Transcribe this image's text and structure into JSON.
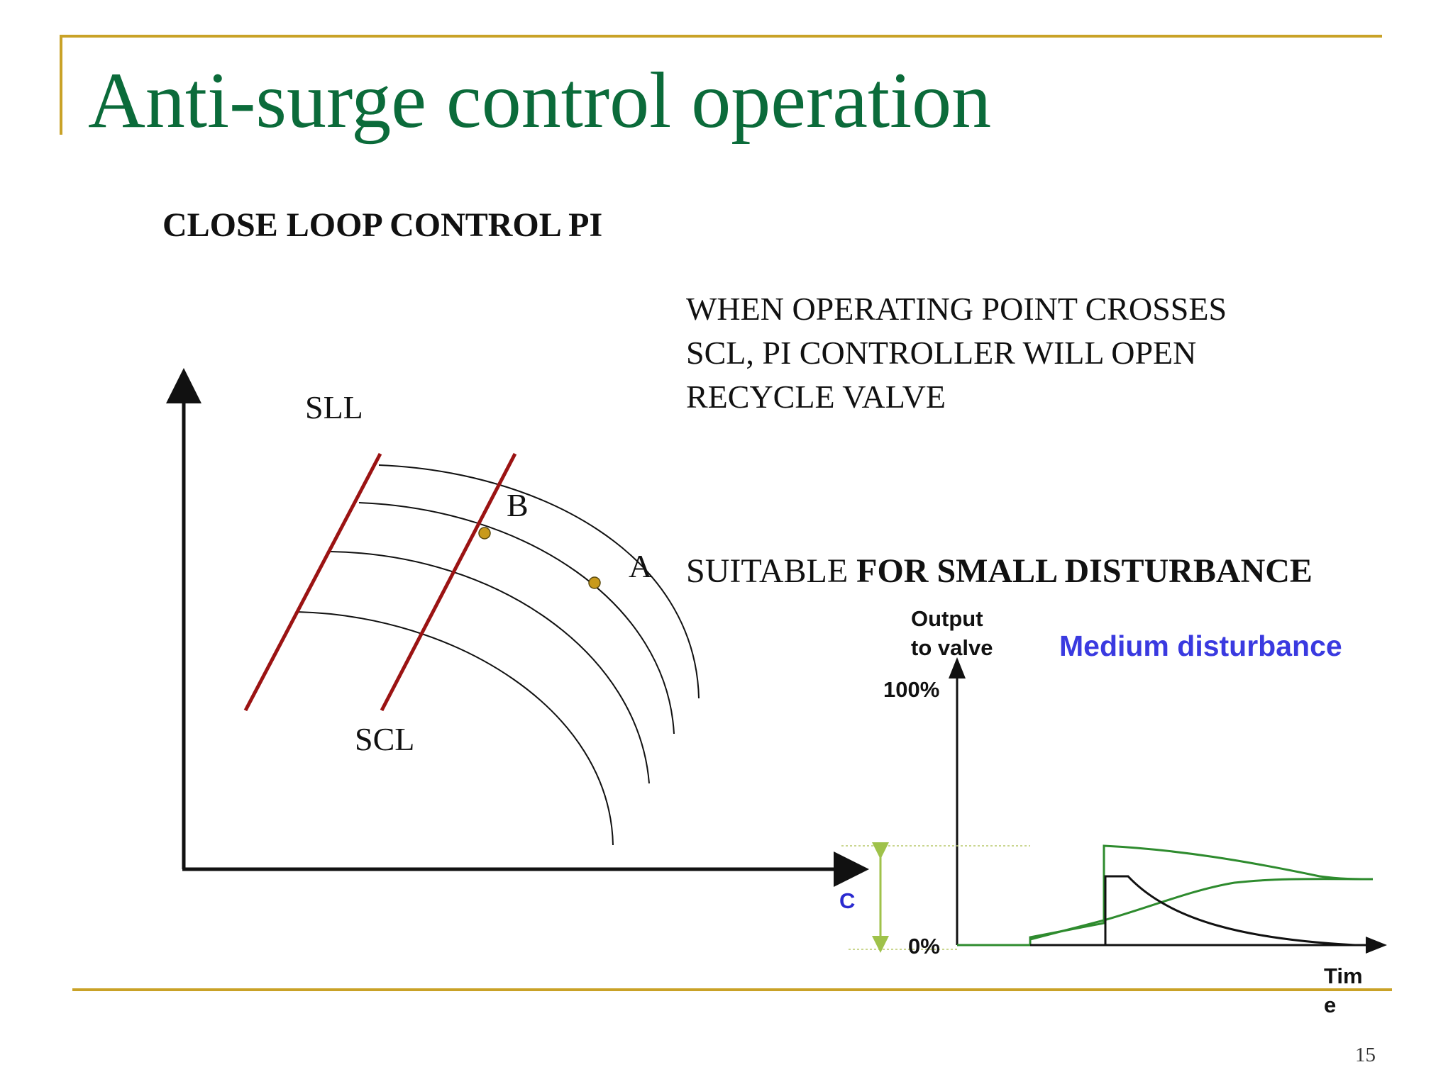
{
  "slide": {
    "title": "Anti-surge control operation",
    "subtitle": "CLOSE LOOP  CONTROL  PI",
    "description_lines": [
      "WHEN OPERATING POINT CROSSES",
      "SCL, PI CONTROLLER WILL OPEN",
      "RECYCLE VALVE"
    ],
    "suitable_prefix": "SUITABLE ",
    "suitable_bold": "FOR SMALL DISTURBANCE",
    "page_number": "15"
  },
  "compressor_map": {
    "labels": {
      "sll": "SLL",
      "scl": "SCL",
      "point_b": "B",
      "point_a": "A"
    },
    "colors": {
      "limit_lines": "#9b1313",
      "points": "#c89a1c",
      "curves": "#111111"
    }
  },
  "valve_chart": {
    "y_axis_label_line1": "Output",
    "y_axis_label_line2": "to valve",
    "y_top_label": "100%",
    "y_bottom_label": "0%",
    "x_axis_label_line1": "Tim",
    "x_axis_label_line2": "e",
    "title": "Medium disturbance",
    "c_label": "C",
    "colors": {
      "title": "#3a3ae0",
      "green": "#2e8b2e",
      "black": "#111111",
      "c_arrow": "#9fc24a"
    }
  }
}
